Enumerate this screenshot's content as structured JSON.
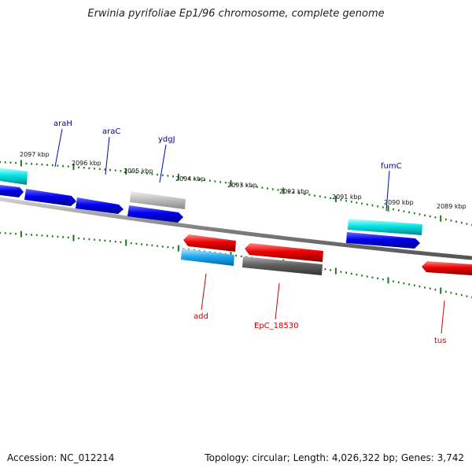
{
  "title": "Erwinia pyrifoliae Ep1/96 chromosome, complete genome",
  "footer": {
    "accession": "Accession: NC_012214",
    "topology": "Topology: circular; Length: 4,026,322 bp; Genes: 3,742"
  },
  "scale_labels": [
    "2097 kbp",
    "2096 kbp",
    "2095 kbp",
    "2094 kbp",
    "2093 kbp",
    "2092 kbp",
    "2091 kbp",
    "2090 kbp",
    "2089 kbp"
  ],
  "gene_labels_forward": [
    "araH",
    "araC",
    "ydgJ",
    "fumC"
  ],
  "gene_labels_reverse": [
    "add",
    "EpC_18530",
    "tus"
  ],
  "colors": {
    "backbone": "#808080",
    "tick": "#1a7a1a",
    "blue_gene": "#0000ee",
    "cyan_gene": "#00dddd",
    "grey_gene": "#c0c0c0",
    "red_gene": "#ee0000",
    "dark_grey_gene": "#606060",
    "sky_gene": "#22aaee",
    "forward_label": "#0000aa",
    "reverse_label": "#cc0000"
  }
}
